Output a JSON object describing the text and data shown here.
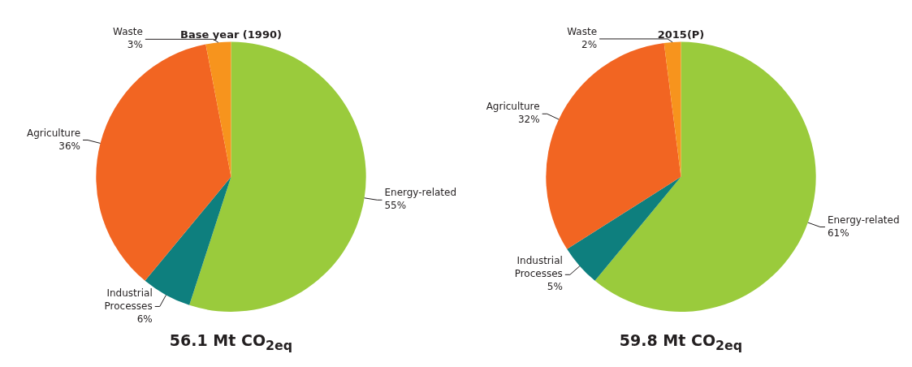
{
  "chart_data": [
    {
      "type": "pie",
      "title": "Base year (1990)",
      "categories": [
        "Energy-related",
        "Industrial Processes",
        "Agriculture",
        "Waste"
      ],
      "values": [
        55,
        6,
        36,
        3
      ],
      "colors": [
        "#9acb3c",
        "#0e7f7e",
        "#f26522",
        "#f7941d"
      ],
      "value_labels": [
        "55%",
        "6%",
        "36%",
        "3%"
      ],
      "legend": false,
      "annotations": [
        "56.1 Mt CO$_{2eq}$"
      ]
    },
    {
      "type": "pie",
      "title": "2015(P)",
      "categories": [
        "Energy-related",
        "Industrial Processes",
        "Agriculture",
        "Waste"
      ],
      "values": [
        61,
        5,
        32,
        2
      ],
      "colors": [
        "#9acb3c",
        "#0e7f7e",
        "#f26522",
        "#f7941d"
      ],
      "value_labels": [
        "61%",
        "5%",
        "32%",
        "2%"
      ],
      "legend": false,
      "annotations": [
        "59.8 Mt CO$_{2eq}$"
      ]
    }
  ]
}
